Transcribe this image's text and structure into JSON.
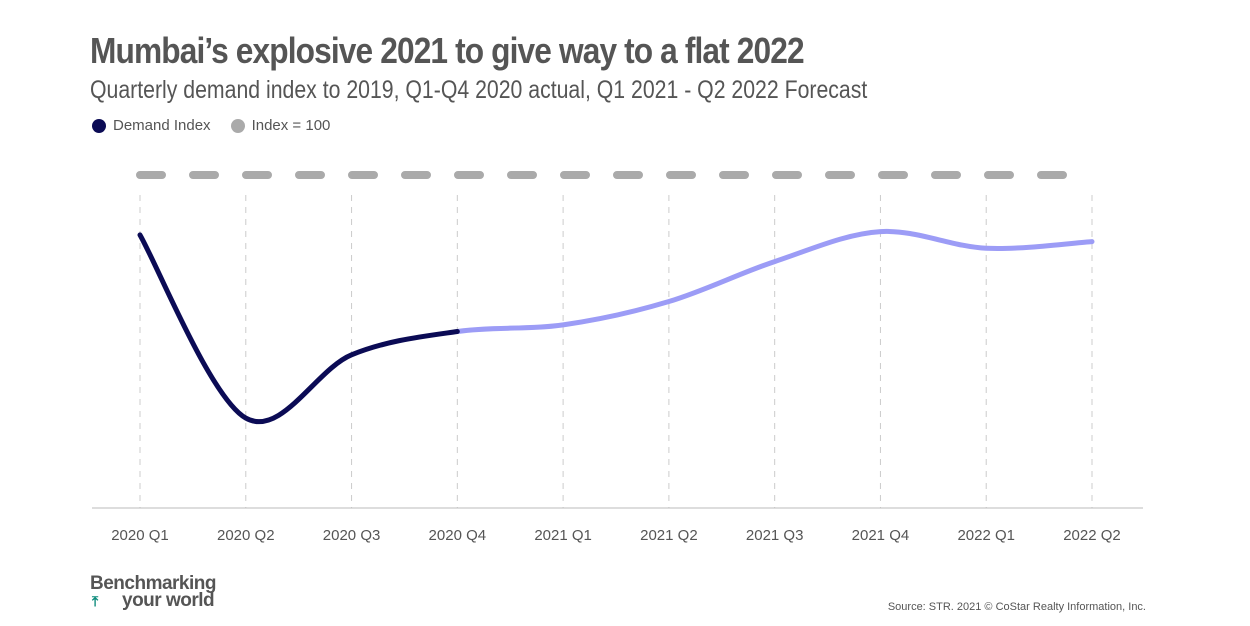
{
  "title": "Mumbai’s explosive 2021 to give way to a flat 2022",
  "subtitle": "Quarterly demand index to 2019, Q1-Q4 2020 actual, Q1 2021 - Q2 2022 Forecast",
  "logo": {
    "line1": "Benchmarking",
    "line2": "your world"
  },
  "source": "Source: STR. 2021 © CoStar Realty Information, Inc.",
  "chart_data": {
    "type": "line",
    "title": "Mumbai’s explosive 2021 to give way to a flat 2022",
    "categories": [
      "2020 Q1",
      "2020 Q2",
      "2020 Q3",
      "2020 Q4",
      "2021 Q1",
      "2021 Q2",
      "2021 Q3",
      "2021 Q4",
      "2022 Q1",
      "2022 Q2"
    ],
    "series": [
      {
        "name": "Demand Index",
        "values": [
          82,
          27,
          46,
          53,
          55,
          62,
          74,
          83,
          78,
          80
        ],
        "actual_through": "2020 Q4",
        "color": "#0b0b55",
        "forecast_color": "#9c9cf6"
      },
      {
        "name": "Index = 100",
        "values": [
          100,
          100,
          100,
          100,
          100,
          100,
          100,
          100,
          100,
          100
        ],
        "color": "#aaaaaa",
        "style": "dashed"
      }
    ],
    "ylim": [
      0,
      100
    ],
    "grid": "vertical dashed",
    "legend": "top-left",
    "xlabel": "",
    "ylabel": ""
  }
}
